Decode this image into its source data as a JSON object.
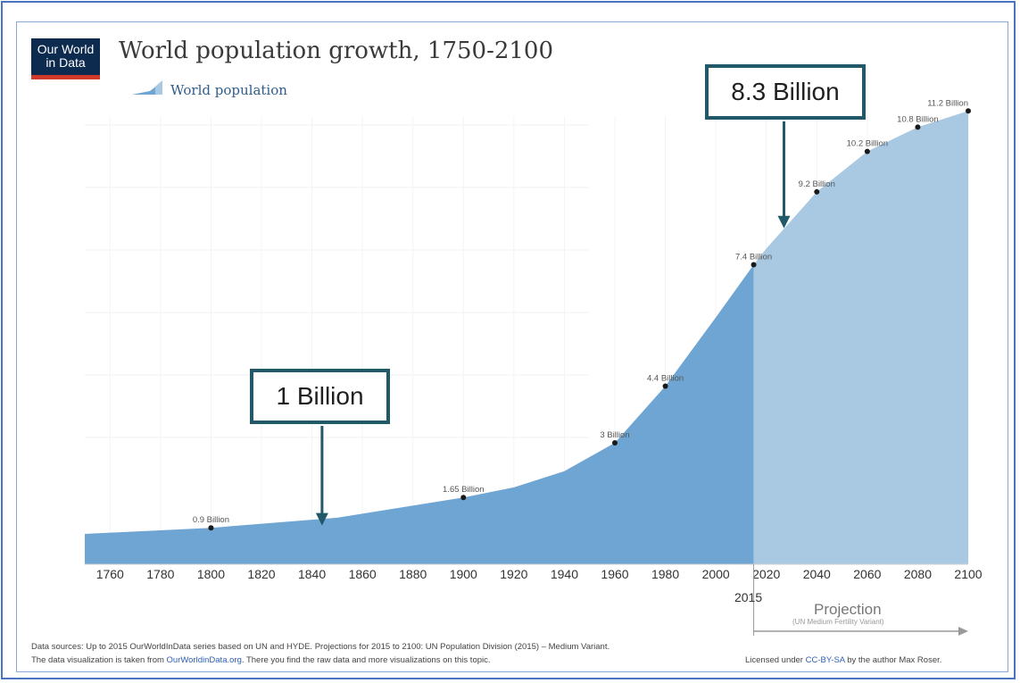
{
  "logo": {
    "line1": "Our World",
    "line2": "in Data"
  },
  "chart_data": {
    "type": "area",
    "title": "World population growth, 1750-2100",
    "legend": {
      "label": "World population",
      "placement": "top-left"
    },
    "x_ticks": [
      1760,
      1780,
      1800,
      1820,
      1840,
      1860,
      1880,
      1900,
      1920,
      1940,
      1960,
      1980,
      2000,
      2020,
      2040,
      2060,
      2080,
      2100
    ],
    "xlim": [
      1750,
      2100
    ],
    "ylim": [
      0,
      12
    ],
    "grid": true,
    "series": [
      {
        "name": "World population",
        "segment": "historical",
        "color": "#6fa5d2",
        "x": [
          1750,
          1800,
          1850,
          1900,
          1920,
          1940,
          1960,
          1980,
          2000,
          2015
        ],
        "y": [
          0.75,
          0.9,
          1.15,
          1.65,
          1.9,
          2.3,
          3.0,
          4.4,
          6.1,
          7.4
        ]
      },
      {
        "name": "Projection",
        "segment": "projection",
        "color": "#a9c9e3",
        "x": [
          2015,
          2020,
          2040,
          2060,
          2080,
          2100
        ],
        "y": [
          7.4,
          7.8,
          9.2,
          10.2,
          10.8,
          11.2
        ]
      }
    ],
    "data_labels": [
      {
        "x": 1800,
        "y": 0.9,
        "text": "0.9 Billion"
      },
      {
        "x": 1900,
        "y": 1.65,
        "text": "1.65 Billion"
      },
      {
        "x": 1960,
        "y": 3.0,
        "text": "3 Billion"
      },
      {
        "x": 1980,
        "y": 4.4,
        "text": "4.4 Billion"
      },
      {
        "x": 2015,
        "y": 7.4,
        "text": "7.4 Billion"
      },
      {
        "x": 2040,
        "y": 9.2,
        "text": "9.2 Billion"
      },
      {
        "x": 2060,
        "y": 10.2,
        "text": "10.2 Billion"
      },
      {
        "x": 2080,
        "y": 10.8,
        "text": "10.8 Billion"
      },
      {
        "x": 2100,
        "y": 11.2,
        "text": "11.2 Billion"
      }
    ],
    "marker_year": "2015",
    "projection_label": "Projection",
    "projection_sublabel": "(UN Medium Fertility Variant)",
    "annotations": [
      {
        "text": "1 Billion",
        "x": 1844,
        "y": 1.0
      },
      {
        "text": "8.3 Billion",
        "x": 2027,
        "y": 8.3
      }
    ]
  },
  "footer": {
    "sources": "Data sources:  Up to 2015 OurWorldInData series based on UN and HYDE. Projections for 2015 to 2100: UN Population Division (2015) – Medium Variant.",
    "viz_prefix": "The data visualization is taken from ",
    "viz_link": "OurWorldinData.org",
    "viz_suffix": ". There you find the raw data and more visualizations on this topic.",
    "license_prefix": "Licensed under ",
    "license_link": "CC-BY-SA",
    "license_suffix": " by the author Max Roser."
  },
  "colors": {
    "historical": "#6fa5d2",
    "projection": "#a9c9e3",
    "callout_border": "#215968",
    "arrow": "#215968"
  }
}
